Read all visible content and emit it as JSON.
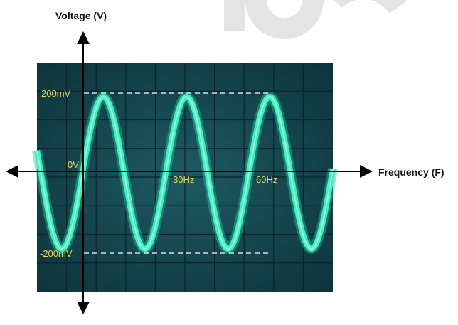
{
  "axes": {
    "y_title": "Voltage (V)",
    "x_title": "Frequency (F)"
  },
  "labels": {
    "top": "200mV",
    "zero": "0V",
    "bottom": "-200mV",
    "x1": "30Hz",
    "x2": "60Hz"
  }
}
